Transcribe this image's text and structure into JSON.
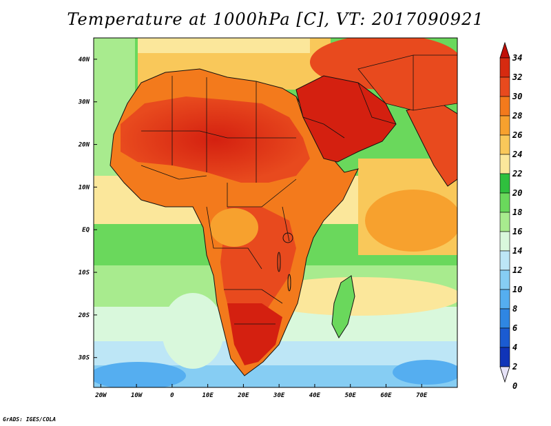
{
  "title": "Temperature at 1000hPa [C], VT: 2017090921",
  "credit": "GrADS: IGES/COLA",
  "map": {
    "lon_ticks": [
      "20W",
      "10W",
      "0",
      "10E",
      "20E",
      "30E",
      "40E",
      "50E",
      "60E",
      "70E"
    ],
    "lat_ticks": [
      "40N",
      "30N",
      "20N",
      "10N",
      "EQ",
      "10S",
      "20S",
      "30S"
    ],
    "lon_values": [
      -20,
      -10,
      0,
      10,
      20,
      30,
      40,
      50,
      60,
      70
    ],
    "lat_values": [
      40,
      30,
      20,
      10,
      0,
      -10,
      -20,
      -30
    ],
    "lon_range": [
      -22,
      80
    ],
    "lat_range": [
      -37,
      45
    ]
  },
  "colorbar": {
    "labels": [
      "34",
      "32",
      "30",
      "28",
      "26",
      "24",
      "22",
      "20",
      "18",
      "16",
      "14",
      "12",
      "10",
      "8",
      "6",
      "4",
      "2",
      "0"
    ],
    "colors": [
      "#d62a10",
      "#e84a1e",
      "#f37a1c",
      "#f7a12e",
      "#f9c85a",
      "#fbe79b",
      "#2fc03e",
      "#6ad85c",
      "#a8eb8e",
      "#d9f8dc",
      "#bde6f6",
      "#86cdf3",
      "#55aef0",
      "#2f86e2",
      "#1b5bd1",
      "#1034b8",
      "#0a1a8c",
      "#e6e2f7"
    ]
  }
}
